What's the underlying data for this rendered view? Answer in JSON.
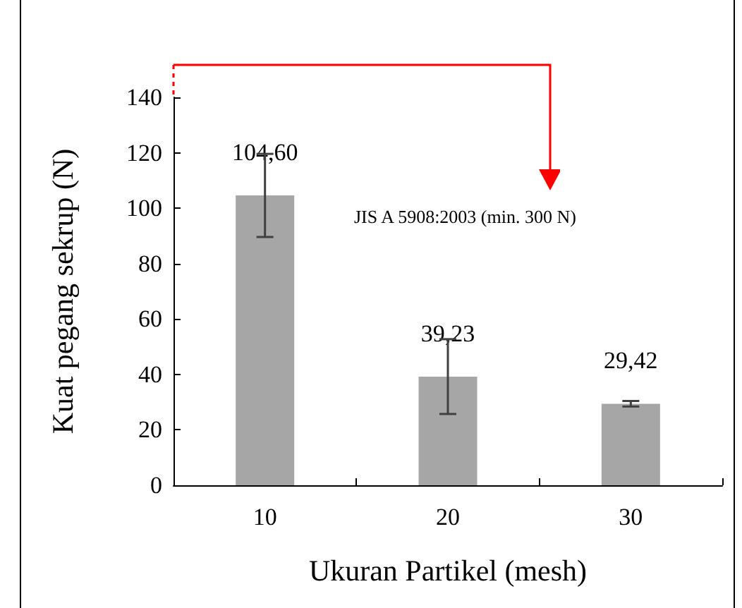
{
  "chart_data": {
    "type": "bar",
    "xlabel": "Ukuran Partikel (mesh)",
    "ylabel": "Kuat pegang sekrup (N)",
    "categories": [
      "10",
      "20",
      "30"
    ],
    "values": [
      104.6,
      39.23,
      29.42
    ],
    "color": "#a6a6a6",
    "errors": [
      15,
      13.5,
      1
    ],
    "value_labels": [
      "104,60",
      "39,23",
      "29,42"
    ],
    "ylim": [
      0,
      140
    ],
    "yticks": [
      0,
      20,
      40,
      60,
      80,
      100,
      120,
      140
    ],
    "grid": false,
    "annotations": [
      "JIS A 5908:2003 (min. 300 N)"
    ]
  }
}
